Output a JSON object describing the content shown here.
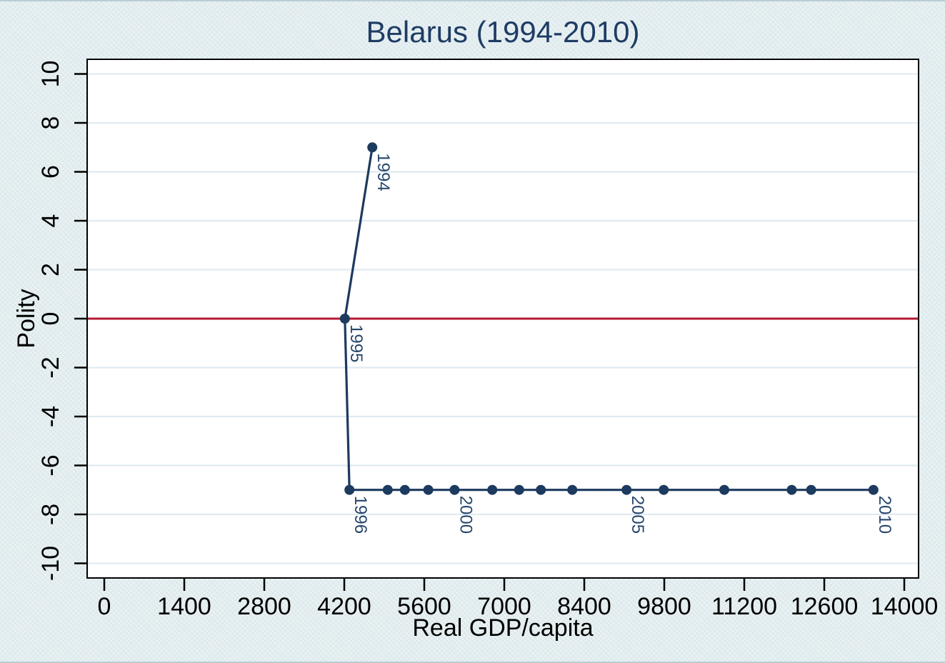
{
  "chart_data": {
    "type": "line",
    "markers": true,
    "title": "Belarus (1994-2010)",
    "xlabel": "Real GDP/capita",
    "ylabel": "Polity",
    "xlim": [
      -300,
      14250
    ],
    "ylim": [
      -10.6,
      10.6
    ],
    "x_ticks": [
      0,
      1400,
      2800,
      4200,
      5600,
      7000,
      8400,
      9800,
      11200,
      12600,
      14000
    ],
    "y_ticks": [
      -10,
      -8,
      -6,
      -4,
      -2,
      0,
      2,
      4,
      6,
      8,
      10
    ],
    "grid": "horizontal",
    "legend": "none",
    "reference_line": {
      "y": 0,
      "color": "#b51a33"
    },
    "series": [
      {
        "name": "Belarus",
        "color": "#1d3a5f",
        "points": [
          {
            "year": 1994,
            "gdp": 4690,
            "polity": 7,
            "label": "1994"
          },
          {
            "year": 1995,
            "gdp": 4210,
            "polity": 0,
            "label": "1995"
          },
          {
            "year": 1996,
            "gdp": 4290,
            "polity": -7,
            "label": "1996"
          },
          {
            "year": 1997,
            "gdp": 4960,
            "polity": -7
          },
          {
            "year": 1998,
            "gdp": 5260,
            "polity": -7
          },
          {
            "year": 1999,
            "gdp": 5670,
            "polity": -7
          },
          {
            "year": 2000,
            "gdp": 6130,
            "polity": -7,
            "label": "2000"
          },
          {
            "year": 2001,
            "gdp": 6790,
            "polity": -7
          },
          {
            "year": 2002,
            "gdp": 7260,
            "polity": -7
          },
          {
            "year": 2003,
            "gdp": 7640,
            "polity": -7
          },
          {
            "year": 2004,
            "gdp": 8190,
            "polity": -7
          },
          {
            "year": 2005,
            "gdp": 9140,
            "polity": -7,
            "label": "2005"
          },
          {
            "year": 2006,
            "gdp": 9790,
            "polity": -7
          },
          {
            "year": 2007,
            "gdp": 10850,
            "polity": -7
          },
          {
            "year": 2008,
            "gdp": 12030,
            "polity": -7
          },
          {
            "year": 2009,
            "gdp": 12370,
            "polity": -7
          },
          {
            "year": 2010,
            "gdp": 13460,
            "polity": -7,
            "label": "2010"
          }
        ]
      }
    ],
    "colors": {
      "series": "#1d3a5f",
      "point_label": "#26466b",
      "reference": "#b51a33",
      "grid": "#dfeaf1",
      "axis": "#000000",
      "tick_label": "#000000",
      "title": "#1e3c64",
      "plot_bg": "#ffffff",
      "page_bg": "#e3edef"
    }
  }
}
